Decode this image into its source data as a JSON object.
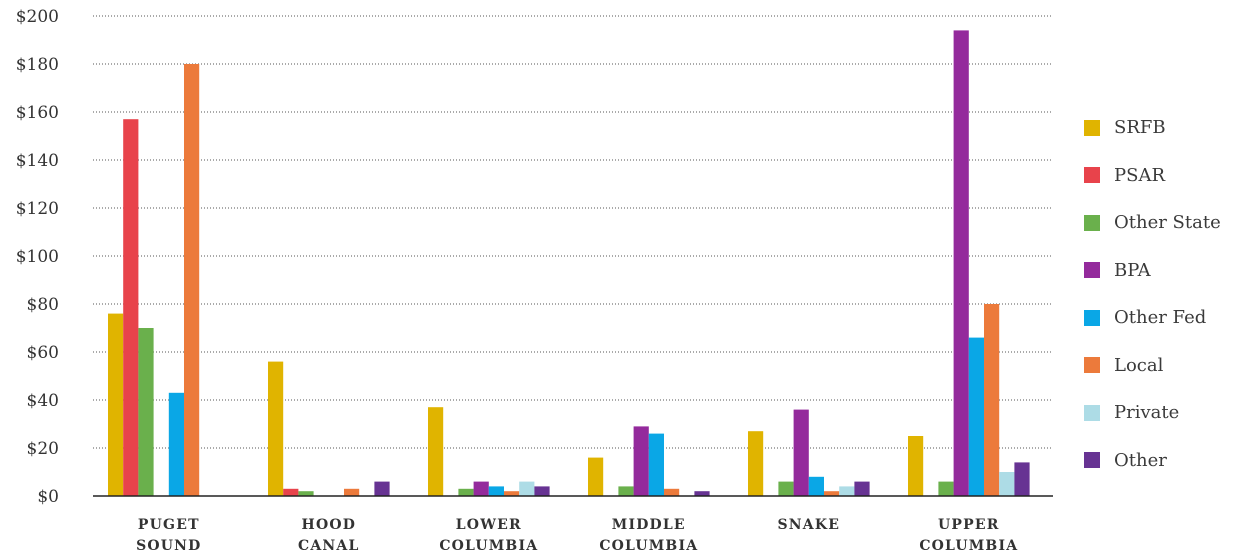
{
  "chart_data": {
    "type": "bar",
    "categories": [
      "PUGET\nSOUND",
      "HOOD\nCANAL",
      "LOWER\nCOLUMBIA",
      "MIDDLE\nCOLUMBIA",
      "SNAKE",
      "UPPER\nCOLUMBIA"
    ],
    "series": [
      {
        "name": "SRFB",
        "color": "#E0B400",
        "values": [
          76,
          56,
          37,
          16,
          27,
          25
        ]
      },
      {
        "name": "PSAR",
        "color": "#E8434B",
        "values": [
          157,
          3,
          0,
          0,
          0,
          0
        ]
      },
      {
        "name": "Other State",
        "color": "#6AB04C",
        "values": [
          70,
          2,
          3,
          4,
          6,
          6
        ]
      },
      {
        "name": "BPA",
        "color": "#942A9C",
        "values": [
          0,
          0,
          6,
          29,
          36,
          194
        ]
      },
      {
        "name": "Other Fed",
        "color": "#0AA7E6",
        "values": [
          43,
          0,
          4,
          26,
          8,
          66
        ]
      },
      {
        "name": "Local",
        "color": "#EC7A3B",
        "values": [
          180,
          3,
          2,
          3,
          2,
          80
        ]
      },
      {
        "name": "Private",
        "color": "#ADDCE6",
        "values": [
          0,
          0,
          6,
          0,
          4,
          10
        ]
      },
      {
        "name": "Other",
        "color": "#673393",
        "values": [
          0,
          6,
          4,
          2,
          6,
          14
        ]
      }
    ],
    "ylim": [
      0,
      200
    ],
    "yticks": [
      0,
      20,
      40,
      60,
      80,
      100,
      120,
      140,
      160,
      180,
      200
    ],
    "ytick_labels": [
      "$0",
      "$20",
      "$40",
      "$60",
      "$80",
      "$100",
      "$120",
      "$140",
      "$160",
      "$180",
      "$200"
    ],
    "grid": "dotted horizontal",
    "legend_position": "right",
    "title": "",
    "xlabel": "",
    "ylabel": ""
  }
}
